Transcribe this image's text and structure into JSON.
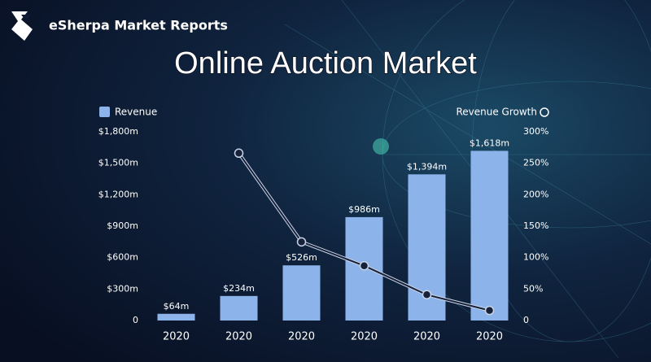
{
  "header": {
    "brand": "eSherpa Market Reports"
  },
  "chart_data": {
    "type": "bar",
    "title": "Online Auction Market",
    "categories": [
      "2020",
      "2020",
      "2020",
      "2020",
      "2020",
      "2020"
    ],
    "series": [
      {
        "name": "Revenue",
        "color": "#8db4ea",
        "values": [
          64,
          234,
          526,
          986,
          1394,
          1618
        ],
        "value_labels": [
          "$64m",
          "$234m",
          "$526m",
          "$986m",
          "$1,394m",
          "$1,618m"
        ]
      },
      {
        "name": "Revenue Growth",
        "type": "line",
        "axis": "y2",
        "color": "#18213a",
        "values": [
          null,
          266,
          125,
          87,
          41,
          16
        ]
      }
    ],
    "ylim": [
      0,
      1800
    ],
    "yticks": [
      0,
      {
        "value": 300,
        "label": "$300m"
      },
      {
        "value": 600,
        "label": "$600m"
      },
      {
        "value": 900,
        "label": "$900m"
      },
      {
        "value": 1200,
        "label": "$1,200m"
      },
      {
        "value": 1500,
        "label": "$1,500m"
      },
      {
        "value": 1800,
        "label": "$1,800m"
      }
    ],
    "y2lim": [
      0,
      300
    ],
    "y2ticks": [
      0,
      {
        "value": 50,
        "label": "50%"
      },
      {
        "value": 100,
        "label": "100%"
      },
      {
        "value": 150,
        "label": "150%"
      },
      {
        "value": 200,
        "label": "200%"
      },
      {
        "value": 250,
        "label": "250%"
      },
      {
        "value": 300,
        "label": "300%"
      }
    ],
    "grid": false
  }
}
